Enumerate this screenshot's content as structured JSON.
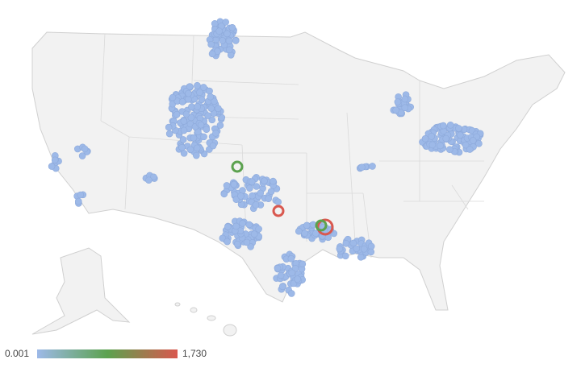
{
  "legend": {
    "min": 0.001,
    "max": {
      "value": 1730,
      "label": "1,730"
    },
    "colors": [
      "#9db9e8",
      "#5ca24f",
      "#d9584f"
    ]
  }
}
